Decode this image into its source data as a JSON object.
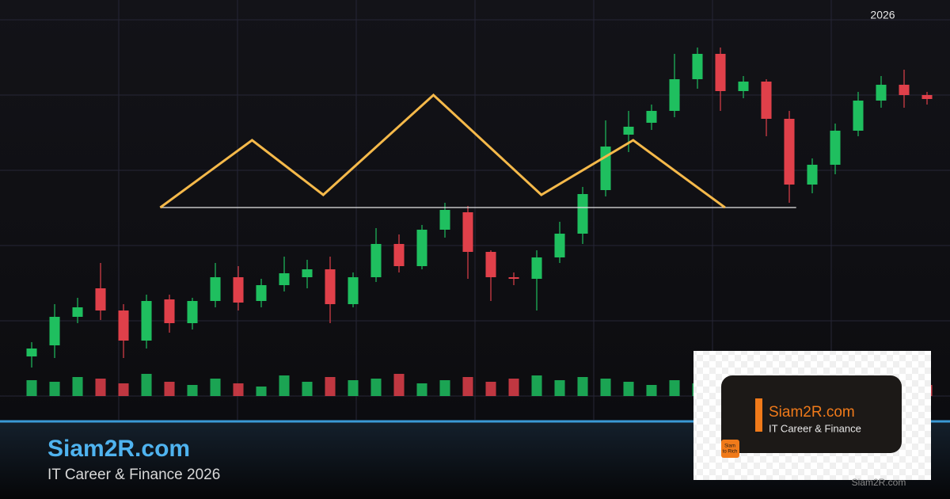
{
  "header": {
    "year": "2026"
  },
  "chart_data": {
    "type": "candlestick",
    "open": [
      12.5,
      16,
      25,
      34,
      27,
      17.5,
      30.5,
      23,
      30,
      37.5,
      30,
      35,
      37.5,
      40,
      29,
      37.5,
      48,
      41,
      52.5,
      58,
      45.5,
      37.5,
      37,
      43.75,
      51.25,
      65,
      82.5,
      86.25,
      90,
      100,
      108,
      96.25,
      99.25,
      87.5,
      66.75,
      73,
      83.75,
      93.25,
      98.25,
      95
    ],
    "high": [
      17,
      29,
      31,
      42,
      29,
      32,
      32,
      31,
      42,
      41,
      37,
      44,
      43,
      44,
      39,
      53,
      51,
      54,
      61,
      60,
      46,
      39,
      46,
      55,
      66,
      87,
      90,
      92,
      108,
      110,
      110,
      101,
      100,
      90,
      75,
      86,
      96,
      101,
      103,
      96
    ],
    "low": [
      9,
      12,
      23,
      24,
      12,
      15,
      20,
      21,
      28,
      27,
      28,
      33,
      34,
      23,
      28,
      36,
      39,
      40,
      50,
      37,
      30,
      35,
      27,
      42,
      48,
      63,
      77,
      84,
      88,
      97,
      90,
      94,
      82,
      61,
      64,
      70,
      82,
      91,
      91,
      92
    ],
    "close": [
      15,
      25,
      28,
      27,
      17.5,
      30,
      23,
      30,
      37.5,
      29.5,
      35,
      38.75,
      40,
      29,
      37.5,
      48,
      41,
      52.5,
      58.75,
      45.5,
      37.5,
      37,
      43.75,
      51.25,
      63.75,
      78.75,
      85,
      90,
      100,
      108,
      96.25,
      99.25,
      87.5,
      66.75,
      73,
      83.75,
      93.25,
      98.25,
      95,
      93.75
    ],
    "volume": [
      20,
      18,
      24,
      22,
      16,
      28,
      18,
      14,
      22,
      16,
      12,
      26,
      18,
      24,
      20,
      22,
      28,
      16,
      20,
      24,
      18,
      22,
      26,
      20,
      24,
      22,
      18,
      14,
      20,
      16,
      22,
      12,
      18,
      24,
      14,
      20,
      18,
      16,
      22,
      14
    ],
    "up_color": "#1fbf5f",
    "down_color": "#e0404a",
    "xlim": [
      -1.38,
      40
    ],
    "ylim": [
      0,
      125
    ],
    "volume_lim": [
      0,
      100
    ],
    "pattern": {
      "color": "#f5b94a",
      "x": [
        5.6,
        9.6,
        12.7,
        17.5,
        22.2,
        26.2,
        30.2
      ],
      "y": [
        59.5,
        80.75,
        63.5,
        95,
        63.5,
        80.75,
        59.5
      ]
    },
    "neckline": {
      "color": "#e8e8e8",
      "x": [
        5.6,
        33.3
      ],
      "y": [
        59.5,
        59.5
      ]
    }
  },
  "brand": {
    "title": "Siam2R.com",
    "subtitle": "IT Career & Finance 2026"
  },
  "logo": {
    "title": "Siam2R.com",
    "subtitle": "IT Career & Finance",
    "badge_top": "Siam",
    "badge_bottom": "to Rich"
  },
  "watermark": "Siam2R.com"
}
